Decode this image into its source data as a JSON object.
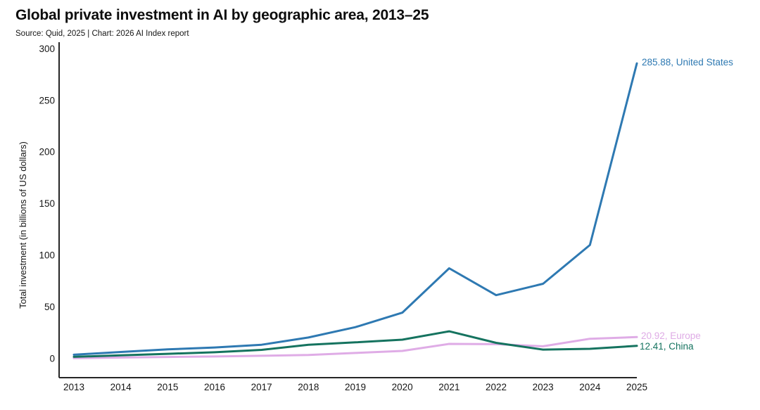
{
  "chart_data": {
    "type": "line",
    "title": "Global private investment in AI by geographic area, 2013–25",
    "source": "Source: Quid, 2025 | Chart: 2026 AI Index report",
    "xlabel": "",
    "ylabel": "Total investment (in billions of US dollars)",
    "x": [
      2013,
      2014,
      2015,
      2016,
      2017,
      2018,
      2019,
      2020,
      2021,
      2022,
      2023,
      2024,
      2025
    ],
    "ylim": [
      0,
      300
    ],
    "yticks": [
      0,
      50,
      100,
      150,
      200,
      250,
      300
    ],
    "grid": false,
    "legend_position": "end-of-line-labels",
    "axis_color": "#262626",
    "text_color": "#161616",
    "series": [
      {
        "name": "United States",
        "color": "#2e79b2",
        "end_label": "285.88, United States",
        "final_value": 285.88,
        "values": [
          3.8,
          6.5,
          9.0,
          10.8,
          13.5,
          20.5,
          30.5,
          44.5,
          87.5,
          61.5,
          72.5,
          110.0,
          285.88
        ]
      },
      {
        "name": "Europe",
        "color": "#dface6",
        "end_label": "20.92, Europe",
        "final_value": 20.92,
        "values": [
          0.5,
          1.1,
          1.6,
          2.1,
          2.8,
          3.6,
          5.5,
          7.5,
          14.3,
          14.0,
          12.0,
          19.3,
          20.92
        ]
      },
      {
        "name": "China",
        "color": "#15735f",
        "end_label": "12.41, China",
        "final_value": 12.41,
        "values": [
          1.8,
          3.2,
          4.7,
          6.2,
          8.5,
          13.5,
          15.8,
          18.4,
          26.5,
          15.3,
          8.8,
          9.5,
          12.41
        ]
      }
    ]
  }
}
